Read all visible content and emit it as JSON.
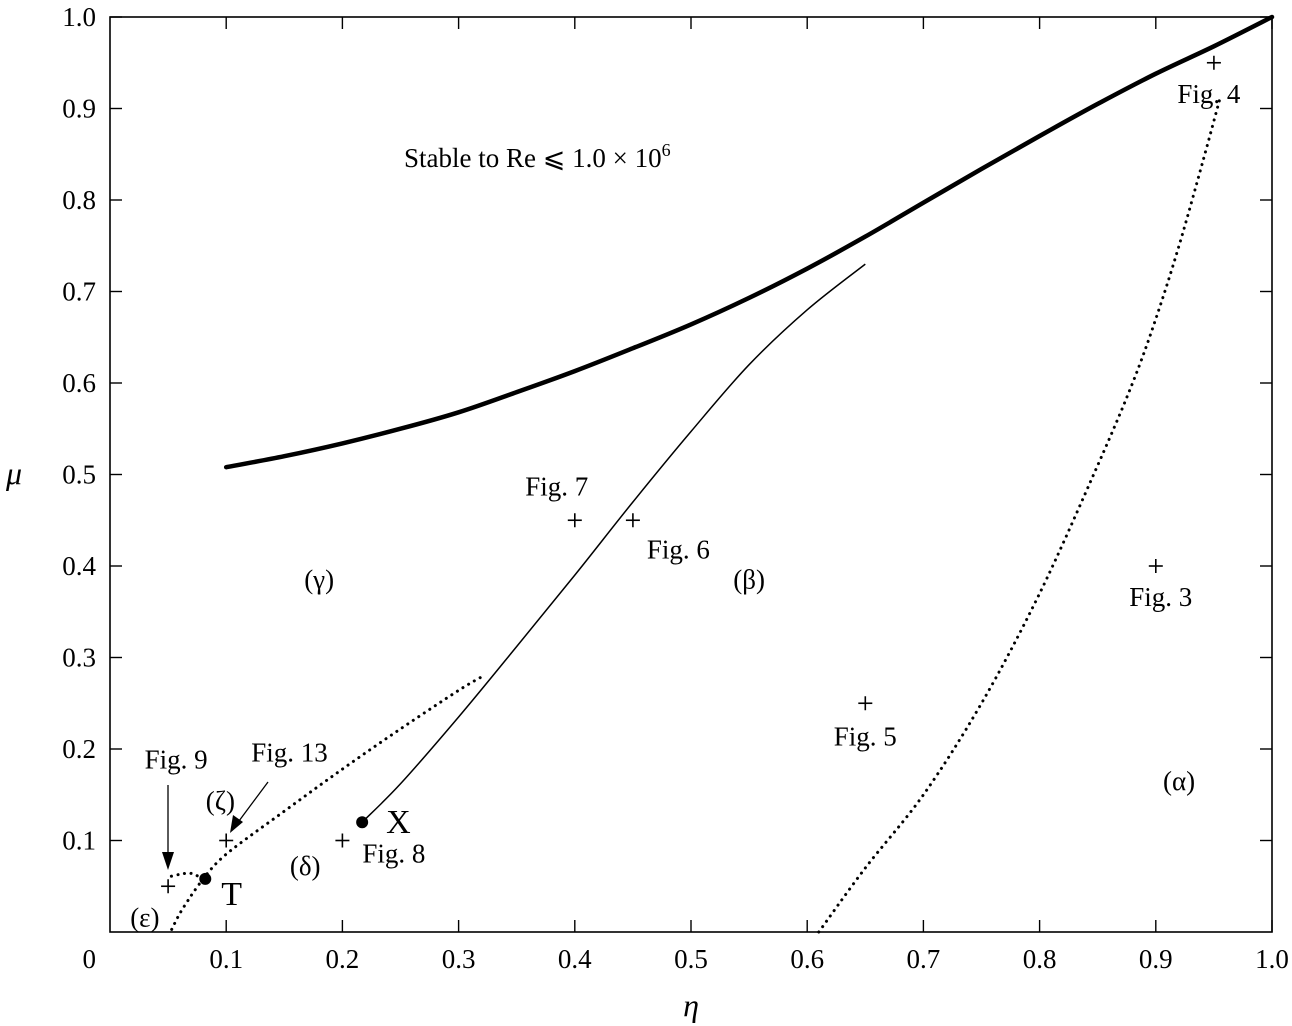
{
  "chart_data": {
    "type": "line",
    "xlabel": "η",
    "ylabel": "μ",
    "xlim": [
      0,
      1.0
    ],
    "ylim": [
      0,
      1.0
    ],
    "grid": false,
    "x_ticks": [
      {
        "value": 0.1,
        "label": "0.1"
      },
      {
        "value": 0.2,
        "label": "0.2"
      },
      {
        "value": 0.3,
        "label": "0.3"
      },
      {
        "value": 0.4,
        "label": "0.4"
      },
      {
        "value": 0.5,
        "label": "0.5"
      },
      {
        "value": 0.6,
        "label": "0.6"
      },
      {
        "value": 0.7,
        "label": "0.7"
      },
      {
        "value": 0.8,
        "label": "0.8"
      },
      {
        "value": 0.9,
        "label": "0.9"
      },
      {
        "value": 1.0,
        "label": "1.0"
      }
    ],
    "y_ticks": [
      {
        "value": 0.1,
        "label": "0.1"
      },
      {
        "value": 0.2,
        "label": "0.2"
      },
      {
        "value": 0.3,
        "label": "0.3"
      },
      {
        "value": 0.4,
        "label": "0.4"
      },
      {
        "value": 0.5,
        "label": "0.5"
      },
      {
        "value": 0.6,
        "label": "0.6"
      },
      {
        "value": 0.7,
        "label": "0.7"
      },
      {
        "value": 0.8,
        "label": "0.8"
      },
      {
        "value": 0.9,
        "label": "0.9"
      },
      {
        "value": 1.0,
        "label": "1.0"
      }
    ],
    "origin_label": "0",
    "series": [
      {
        "style": "thick-solid",
        "x": [
          0.1,
          0.15,
          0.2,
          0.25,
          0.3,
          0.35,
          0.4,
          0.45,
          0.5,
          0.55,
          0.6,
          0.65,
          0.7,
          0.75,
          0.8,
          0.85,
          0.9,
          0.95,
          1.0
        ],
        "y": [
          0.508,
          0.52,
          0.534,
          0.55,
          0.568,
          0.59,
          0.613,
          0.638,
          0.664,
          0.693,
          0.725,
          0.76,
          0.797,
          0.834,
          0.87,
          0.905,
          0.938,
          0.968,
          1.0
        ]
      },
      {
        "style": "thin-solid",
        "x": [
          0.217,
          0.25,
          0.3,
          0.35,
          0.4,
          0.45,
          0.5,
          0.55,
          0.6,
          0.65
        ],
        "y": [
          0.12,
          0.162,
          0.235,
          0.312,
          0.39,
          0.47,
          0.547,
          0.62,
          0.68,
          0.73
        ]
      },
      {
        "style": "dotted",
        "x": [
          0.61,
          0.65,
          0.7,
          0.75,
          0.8,
          0.85,
          0.88,
          0.9,
          0.92,
          0.94,
          0.955
        ],
        "y": [
          0.0,
          0.07,
          0.15,
          0.25,
          0.37,
          0.51,
          0.6,
          0.67,
          0.75,
          0.84,
          0.91
        ]
      },
      {
        "style": "dotted",
        "x": [
          0.08,
          0.1,
          0.15,
          0.2,
          0.25,
          0.3,
          0.32
        ],
        "y": [
          0.058,
          0.085,
          0.132,
          0.178,
          0.222,
          0.264,
          0.279
        ]
      },
      {
        "style": "dotted",
        "x": [
          0.08,
          0.07,
          0.06,
          0.05
        ],
        "y": [
          0.058,
          0.064,
          0.063,
          0.06
        ]
      },
      {
        "style": "dotted",
        "x": [
          0.08,
          0.07,
          0.06,
          0.052
        ],
        "y": [
          0.058,
          0.04,
          0.02,
          0.0
        ]
      }
    ],
    "markers": [
      {
        "kind": "plus",
        "x": 0.95,
        "y": 0.95,
        "label": "Fig. 4"
      },
      {
        "kind": "plus",
        "x": 0.9,
        "y": 0.4,
        "label": "Fig. 3"
      },
      {
        "kind": "plus",
        "x": 0.65,
        "y": 0.25,
        "label": "Fig. 5"
      },
      {
        "kind": "plus",
        "x": 0.45,
        "y": 0.45,
        "label": "Fig. 6"
      },
      {
        "kind": "plus",
        "x": 0.4,
        "y": 0.45,
        "label": "Fig. 7"
      },
      {
        "kind": "plus",
        "x": 0.2,
        "y": 0.1,
        "label": "Fig. 8"
      },
      {
        "kind": "plus",
        "x": 0.1,
        "y": 0.1,
        "label": "Fig. 13"
      },
      {
        "kind": "plus",
        "x": 0.05,
        "y": 0.05,
        "label": "Fig. 9"
      },
      {
        "kind": "dot",
        "x": 0.217,
        "y": 0.12,
        "label": "X"
      },
      {
        "kind": "dot",
        "x": 0.082,
        "y": 0.058,
        "label": "T"
      }
    ],
    "regions": [
      {
        "x": 0.92,
        "y": 0.165,
        "label": "(α)"
      },
      {
        "x": 0.55,
        "y": 0.385,
        "label": "(β)"
      },
      {
        "x": 0.18,
        "y": 0.385,
        "label": "(γ)"
      },
      {
        "x": 0.168,
        "y": 0.072,
        "label": "(δ)"
      },
      {
        "x": 0.03,
        "y": 0.016,
        "label": "(ε)"
      },
      {
        "x": 0.095,
        "y": 0.143,
        "label": "(ζ)"
      }
    ],
    "annotation": {
      "text": "Stable to Re ⩽ 1.0 × 10",
      "sup": "6"
    }
  }
}
